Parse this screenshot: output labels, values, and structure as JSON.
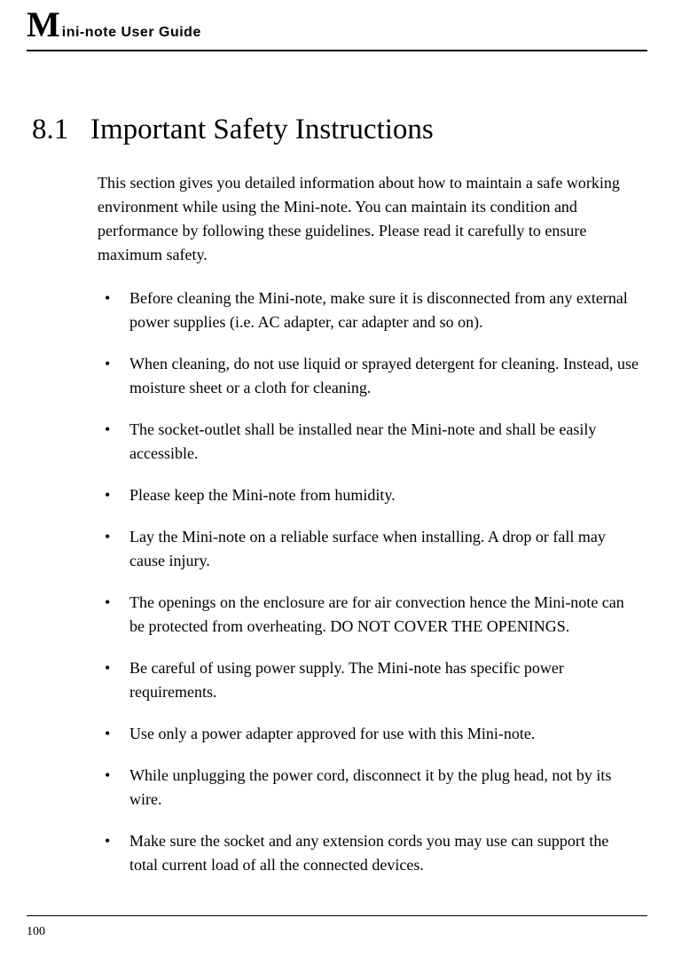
{
  "header": {
    "big_letter": "M",
    "rest": "ini-note User Guide"
  },
  "section": {
    "number": "8.1",
    "title": "Important Safety Instructions",
    "intro": "This section gives you detailed information about how to maintain a safe working environment while using the Mini-note. You can maintain its condition and performance by following these guidelines. Please read it carefully to ensure maximum safety."
  },
  "bullets": [
    "Before cleaning the Mini-note, make sure it is disconnected from any external power supplies (i.e. AC adapter, car adapter and so on).",
    "When cleaning, do not use liquid or sprayed detergent for cleaning. Instead, use moisture sheet or a cloth for cleaning.",
    "The socket-outlet shall be installed near the Mini-note and shall be easily accessible.",
    "Please keep the Mini-note from humidity.",
    "Lay the Mini-note on a reliable surface when installing.  A drop or fall may cause injury.",
    "The openings on the enclosure are for air convection hence the Mini-note can be protected from overheating. DO NOT COVER THE OPENINGS.",
    "Be careful of using power supply. The Mini-note has specific power requirements.",
    "Use only a power adapter approved for use with this Mini-note.",
    "While unplugging the power cord, disconnect it by the plug head, not by its wire.",
    "Make sure the socket and any extension cords you may use can support the total current load of all the connected devices."
  ],
  "footer": {
    "page_number": "100"
  },
  "colors": {
    "text": "#000000",
    "background": "#ffffff",
    "border": "#000000"
  },
  "typography": {
    "body_font": "Garamond",
    "body_size_pt": 14,
    "heading_size_pt": 24,
    "header_brand_size_pt": 30
  }
}
